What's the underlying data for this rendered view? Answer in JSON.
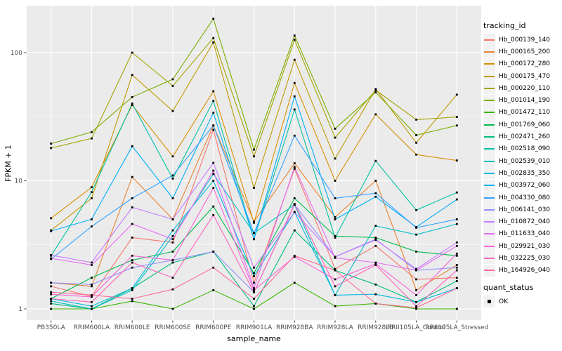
{
  "chart_data": {
    "type": "line",
    "title": "",
    "xlabel": "sample_name",
    "ylabel": "FPKM + 1",
    "legend_title": "tracking_id",
    "legend_position": "right",
    "grid": "on",
    "panel_background": "#EBEBEB",
    "gridline_color": "#FFFFFF",
    "point_marker": "black-square",
    "point_color": "#000000",
    "y_scale": "log10",
    "y_ticks": [
      1,
      10,
      100
    ],
    "y_tick_labels": [
      "1",
      "10",
      "100"
    ],
    "y_minor_gridlines": [
      3.1623,
      31.623
    ],
    "y_range_approx": [
      0.9,
      230
    ],
    "x_categories": [
      "PB350LA",
      "RRIM600LA",
      "RRIM600LE",
      "RRIM600SE",
      "RRIM600PE",
      "RRIM901LA",
      "RRIM928BA",
      "RRIM928LA",
      "RRIM928LB",
      "RRII105LA_Control",
      "RRII105LA_Stressed"
    ],
    "series": [
      {
        "name": "Hb_000139_140",
        "color": "#F8766D",
        "values": [
          1.5,
          1.25,
          3.6,
          3.3,
          25,
          1.6,
          12.4,
          2.05,
          3.1,
          1.7,
          1.75
        ]
      },
      {
        "name": "Hb_000165_200",
        "color": "#EA8331",
        "values": [
          1.6,
          1.5,
          10.7,
          5.0,
          27,
          4.8,
          13.7,
          5.2,
          10.0,
          1.4,
          2.2
        ]
      },
      {
        "name": "Hb_000172_280",
        "color": "#D89000",
        "values": [
          5.1,
          8.9,
          39,
          15.5,
          50,
          4.7,
          58,
          10.0,
          33,
          16,
          14.4
        ]
      },
      {
        "name": "Hb_000175_470",
        "color": "#C09B00",
        "values": [
          4.1,
          7.3,
          67,
          35,
          120,
          8.8,
          88,
          14.9,
          52,
          19.8,
          47
        ]
      },
      {
        "name": "Hb_000220_110",
        "color": "#A3A500",
        "values": [
          18,
          21.4,
          100,
          55,
          130,
          15.5,
          126,
          21.7,
          51,
          30,
          31.5
        ]
      },
      {
        "name": "Hb_001014_190",
        "color": "#7CAE00",
        "values": [
          19.5,
          24,
          45,
          62,
          184,
          17.5,
          136,
          25.5,
          49,
          22.7,
          27
        ]
      },
      {
        "name": "Hb_001472_110",
        "color": "#39B600",
        "values": [
          1.0,
          1.0,
          1.15,
          1.0,
          1.4,
          1.0,
          1.6,
          1.05,
          1.1,
          1.0,
          1.0
        ]
      },
      {
        "name": "Hb_001769_060",
        "color": "#00BB4E",
        "values": [
          1.2,
          1.75,
          2.4,
          2.8,
          6.3,
          1.9,
          7.3,
          3.7,
          3.6,
          2.8,
          2.6
        ]
      },
      {
        "name": "Hb_002471_260",
        "color": "#00BF7D",
        "values": [
          1.1,
          1.0,
          1.45,
          2.3,
          2.8,
          1.05,
          4.1,
          2.0,
          1.55,
          1.13,
          1.65
        ]
      },
      {
        "name": "Hb_002518_090",
        "color": "#00C1A3",
        "values": [
          2.6,
          8.15,
          40,
          10.4,
          42,
          3.5,
          36,
          3.6,
          14.3,
          5.9,
          8.1
        ]
      },
      {
        "name": "Hb_002539_010",
        "color": "#00BFC4",
        "values": [
          1.15,
          1.0,
          1.4,
          3.7,
          11.3,
          3.9,
          6.5,
          1.28,
          4.45,
          3.8,
          4.6
        ]
      },
      {
        "name": "Hb_002835_350",
        "color": "#00BAE0",
        "values": [
          1.2,
          1.05,
          1.45,
          4.1,
          10.0,
          1.8,
          5.7,
          1.28,
          1.3,
          1.13,
          1.45
        ]
      },
      {
        "name": "Hb_003972_060",
        "color": "#00B0F6",
        "values": [
          4.05,
          5.0,
          18.6,
          7.3,
          34,
          3.5,
          45.6,
          5.0,
          7.5,
          4.35,
          7.15
        ]
      },
      {
        "name": "Hb_004330_080",
        "color": "#35A2FF",
        "values": [
          2.45,
          4.4,
          7.3,
          11.0,
          27,
          3.9,
          22.5,
          7.3,
          8.0,
          4.3,
          5.0
        ]
      },
      {
        "name": "Hb_006141_030",
        "color": "#9590FF",
        "values": [
          1.6,
          1.55,
          2.1,
          2.4,
          2.8,
          1.35,
          6.5,
          2.55,
          3.5,
          2.0,
          2.1
        ]
      },
      {
        "name": "Hb_010872_040",
        "color": "#C77CFF",
        "values": [
          2.63,
          2.3,
          6.2,
          5.0,
          13.8,
          2.1,
          5.7,
          2.55,
          3.45,
          2.05,
          3.3
        ]
      },
      {
        "name": "Hb_011633_040",
        "color": "#E76BF3",
        "values": [
          2.48,
          2.2,
          4.6,
          3.5,
          12.0,
          1.45,
          12.8,
          2.5,
          2.3,
          2.0,
          3.1
        ]
      },
      {
        "name": "Hb_029921_030",
        "color": "#FA62DB",
        "values": [
          1.3,
          1.24,
          2.6,
          2.4,
          8.8,
          1.4,
          2.55,
          1.7,
          2.25,
          1.28,
          2.7
        ]
      },
      {
        "name": "Hb_032225_030",
        "color": "#FF62BC",
        "values": [
          1.2,
          1.13,
          2.3,
          1.75,
          5.4,
          1.35,
          6.6,
          1.5,
          2.2,
          1.05,
          2.0
        ]
      },
      {
        "name": "Hb_164926_040",
        "color": "#FF6A98",
        "values": [
          1.35,
          1.28,
          1.2,
          1.42,
          2.1,
          1.2,
          2.6,
          2.0,
          1.1,
          1.02,
          1.45
        ]
      }
    ],
    "status_legend": {
      "title": "quant_status",
      "label": "OK",
      "marker": "black-square",
      "marker_color": "#000000"
    }
  }
}
